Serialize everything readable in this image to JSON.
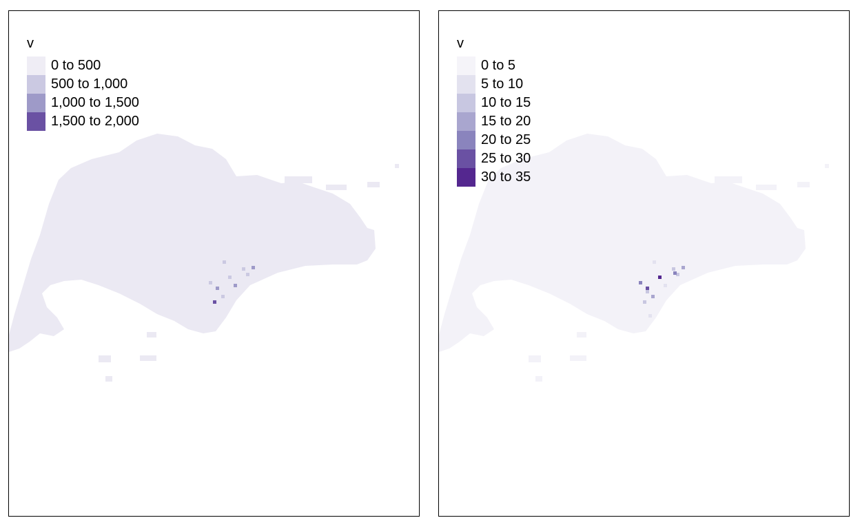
{
  "colors": {
    "background": "#ffffff",
    "frame": "#000000",
    "land_low": "#efedf5",
    "land_lowest": "#f6f5fa"
  },
  "maps": [
    {
      "legend": {
        "title": "v",
        "items": [
          {
            "label": "0 to 500",
            "color": "#efedf5"
          },
          {
            "label": "500 to 1,000",
            "color": "#cbc9e2"
          },
          {
            "label": "1,000 to 1,500",
            "color": "#9e9ac8"
          },
          {
            "label": "1,500 to 2,000",
            "color": "#6a51a3"
          }
        ]
      },
      "base_color": "#ebe9f3",
      "hotspot_classes": [
        1,
        1,
        2,
        1,
        2,
        1,
        3,
        1,
        2,
        1
      ]
    },
    {
      "legend": {
        "title": "v",
        "items": [
          {
            "label": "0 to 5",
            "color": "#f5f4f9"
          },
          {
            "label": "5 to 10",
            "color": "#e3e2ef"
          },
          {
            "label": "10 to 15",
            "color": "#c8c7e1"
          },
          {
            "label": "15 to 20",
            "color": "#a9a6cf"
          },
          {
            "label": "20 to 25",
            "color": "#8a84bd"
          },
          {
            "label": "25 to 30",
            "color": "#6a51a3"
          },
          {
            "label": "30 to 35",
            "color": "#54278f"
          }
        ]
      },
      "base_color": "#f3f2f8",
      "hotspot_classes": [
        1,
        2,
        3,
        4,
        5,
        6,
        2,
        3,
        1,
        2,
        4,
        1,
        2
      ]
    }
  ]
}
